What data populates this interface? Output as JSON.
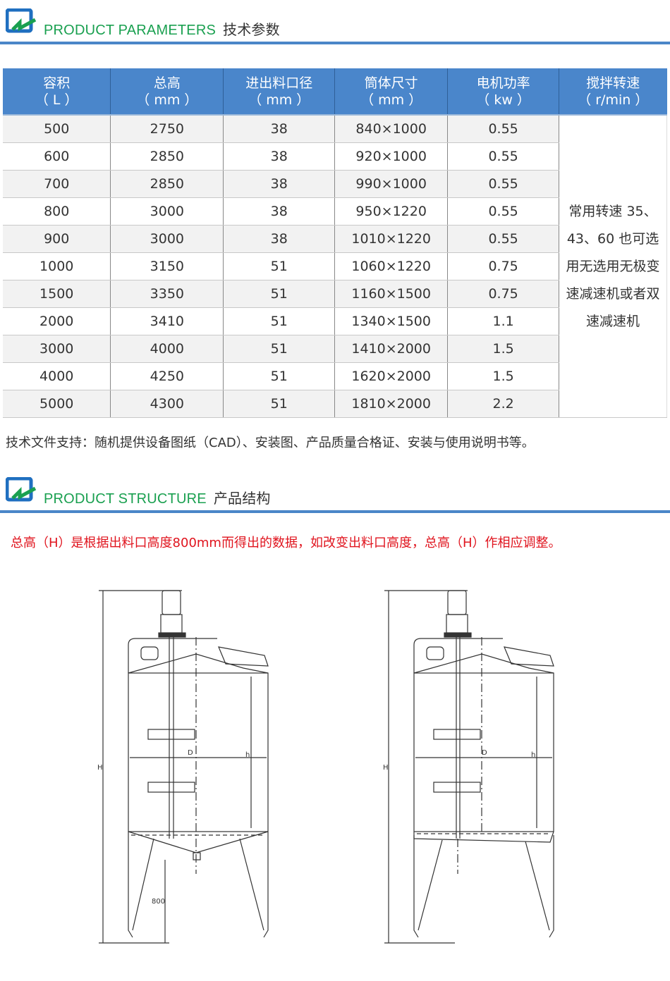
{
  "section1": {
    "title_en": "PRODUCT PARAMETERS",
    "title_cn": "技术参数",
    "logo_icon": "logo-icon"
  },
  "table": {
    "headers": [
      {
        "l1": "容积",
        "l2": "（ L ）"
      },
      {
        "l1": "总高",
        "l2": "（ mm ）"
      },
      {
        "l1": "进出料口径",
        "l2": "（ mm ）"
      },
      {
        "l1": "筒体尺寸",
        "l2": "（ mm ）"
      },
      {
        "l1": "电机功率",
        "l2": "（ kw ）"
      },
      {
        "l1": "搅拌转速",
        "l2": "（ r/min ）"
      }
    ],
    "rows": [
      [
        "500",
        "2750",
        "38",
        "840×1000",
        "0.55"
      ],
      [
        "600",
        "2850",
        "38",
        "920×1000",
        "0.55"
      ],
      [
        "700",
        "2850",
        "38",
        "990×1000",
        "0.55"
      ],
      [
        "800",
        "3000",
        "38",
        "950×1220",
        "0.55"
      ],
      [
        "900",
        "3000",
        "38",
        "1010×1220",
        "0.55"
      ],
      [
        "1000",
        "3150",
        "51",
        "1060×1220",
        "0.75"
      ],
      [
        "1500",
        "3350",
        "51",
        "1160×1500",
        "0.75"
      ],
      [
        "2000",
        "3410",
        "51",
        "1340×1500",
        "1.1"
      ],
      [
        "3000",
        "4000",
        "51",
        "1410×2000",
        "1.5"
      ],
      [
        "4000",
        "4250",
        "51",
        "1620×2000",
        "1.5"
      ],
      [
        "5000",
        "4300",
        "51",
        "1810×2000",
        "2.2"
      ]
    ],
    "speed_note": "常用转速 35、43、60 也可选用无选用无极变速减速机或者双速减速机"
  },
  "note": "技术文件支持：随机提供设备图纸（CAD）、安装图、产品质量合格证、安装与使用说明书等。",
  "section2": {
    "title_en": "PRODUCT STRUCTURE",
    "title_cn": "产品结构"
  },
  "structure_note": "总高（H）是根据出料口高度800mm而得出的数据，如改变出料口高度，总高（H）作相应调整。",
  "drawing": {
    "H": "H",
    "D": "D",
    "h": "h",
    "outlet_height": "800"
  },
  "colors": {
    "header_bg": "#4a86cb",
    "accent_green": "#1aa050",
    "line_blue": "#4a86c8",
    "warning_red": "#e0141e"
  }
}
